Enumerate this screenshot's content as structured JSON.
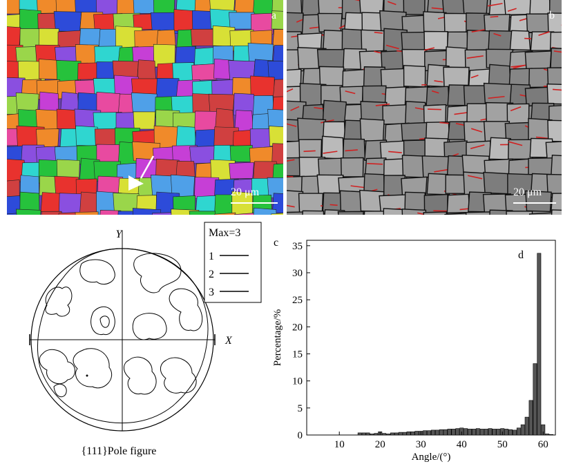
{
  "panel_a": {
    "label": "a",
    "scale_text": "20 μm"
  },
  "panel_b": {
    "label": "b",
    "scale_text": "20 μm"
  },
  "pole_figure": {
    "caption": "{111}Pole figure",
    "axis_y": "Y",
    "axis_x": "X",
    "legend": {
      "title": "Max=3",
      "levels": [
        "1",
        "2",
        "3"
      ]
    }
  },
  "panel_c_label": "c",
  "panel_d_label": "d",
  "chart_data": {
    "type": "bar",
    "title": "",
    "xlabel": "Angle/(°)",
    "ylabel": "Percentage/%",
    "xlim": [
      2,
      63
    ],
    "ylim": [
      0,
      36
    ],
    "xticks": [
      10,
      20,
      30,
      40,
      50,
      60
    ],
    "yticks": [
      0,
      5,
      10,
      15,
      20,
      25,
      30,
      35
    ],
    "x": [
      15,
      16,
      17,
      18,
      19,
      20,
      21,
      22,
      23,
      24,
      25,
      26,
      27,
      28,
      29,
      30,
      31,
      32,
      33,
      34,
      35,
      36,
      37,
      38,
      39,
      40,
      41,
      42,
      43,
      44,
      45,
      46,
      47,
      48,
      49,
      50,
      51,
      52,
      53,
      54,
      55,
      56,
      57,
      58,
      59,
      60,
      61,
      62
    ],
    "values": [
      0.4,
      0.4,
      0.4,
      0.2,
      0.3,
      0.6,
      0.3,
      0.2,
      0.4,
      0.4,
      0.5,
      0.5,
      0.6,
      0.6,
      0.7,
      0.7,
      0.8,
      0.8,
      0.9,
      0.9,
      1.0,
      1.0,
      1.1,
      1.1,
      1.2,
      1.3,
      1.2,
      1.1,
      1.1,
      1.2,
      1.1,
      1.1,
      1.2,
      1.1,
      1.1,
      1.2,
      1.1,
      1.0,
      0.9,
      1.3,
      1.9,
      3.3,
      6.4,
      13.2,
      33.6,
      1.9,
      0.2,
      0.1
    ],
    "bar_color": "#555555"
  }
}
